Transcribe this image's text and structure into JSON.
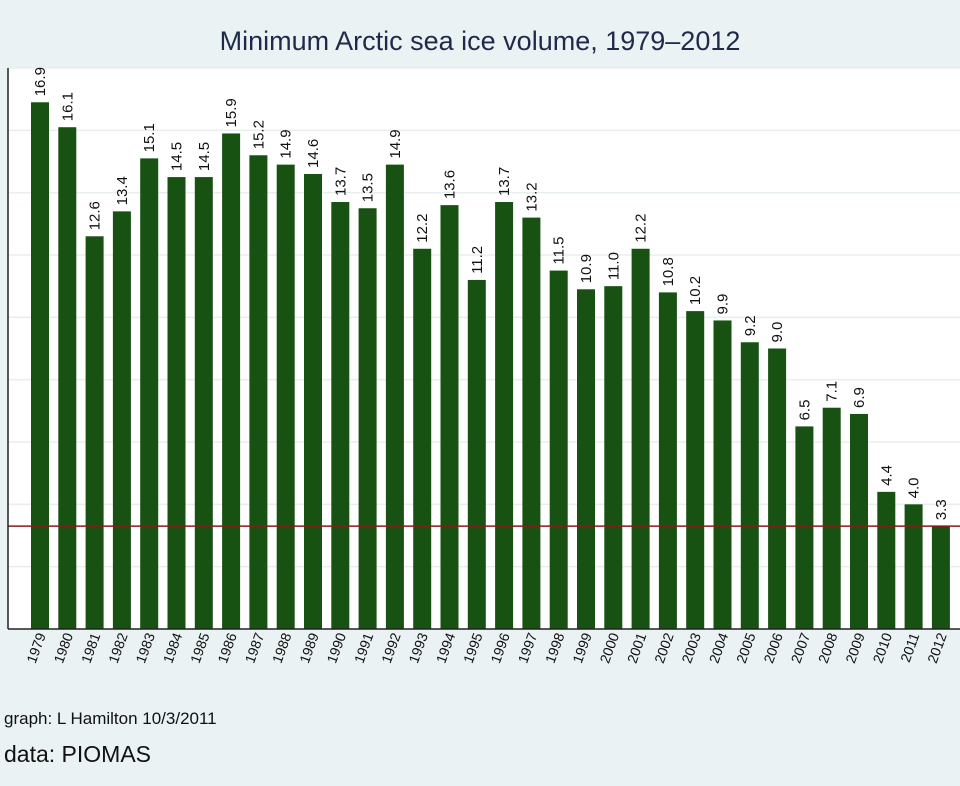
{
  "colors": {
    "background": "#eaf2f3",
    "plot_background": "#ffffff",
    "bar": "#175213",
    "reference_line": "#8b1a1a",
    "gridline": "#e8eeee",
    "title": "#1f2a4a"
  },
  "footer": {
    "credit": "graph:  L Hamilton  10/3/2011",
    "source": "data:  PIOMAS"
  },
  "chart_data": {
    "type": "bar",
    "title": "Minimum Arctic sea ice volume, 1979–2012",
    "xlabel": "",
    "ylabel": "",
    "categories": [
      "1979",
      "1980",
      "1981",
      "1982",
      "1983",
      "1984",
      "1985",
      "1986",
      "1987",
      "1988",
      "1989",
      "1990",
      "1991",
      "1992",
      "1993",
      "1994",
      "1995",
      "1996",
      "1997",
      "1998",
      "1999",
      "2000",
      "2001",
      "2002",
      "2003",
      "2004",
      "2005",
      "2006",
      "2007",
      "2008",
      "2009",
      "2010",
      "2011",
      "2012"
    ],
    "values": [
      16.9,
      16.1,
      12.6,
      13.4,
      15.1,
      14.5,
      14.5,
      15.9,
      15.2,
      14.9,
      14.6,
      13.7,
      13.5,
      14.9,
      12.2,
      13.6,
      11.2,
      13.7,
      13.2,
      11.5,
      10.9,
      11.0,
      12.2,
      10.8,
      10.2,
      9.9,
      9.2,
      9.0,
      6.5,
      7.1,
      6.9,
      4.4,
      4.0,
      3.3
    ],
    "data_labels": [
      "16.9",
      "16.1",
      "12.6",
      "13.4",
      "15.1",
      "14.5",
      "14.5",
      "15.9",
      "15.2",
      "14.9",
      "14.6",
      "13.7",
      "13.5",
      "14.9",
      "12.2",
      "13.6",
      "11.2",
      "13.7",
      "13.2",
      "11.5",
      "10.9",
      "11.0",
      "12.2",
      "10.8",
      "10.2",
      "9.9",
      "9.2",
      "9.0",
      "6.5",
      "7.1",
      "6.9",
      "4.4",
      "4.0",
      "3.3"
    ],
    "reference_line": 3.3,
    "ylim": [
      0,
      18
    ],
    "grid": true,
    "legend": "none"
  }
}
